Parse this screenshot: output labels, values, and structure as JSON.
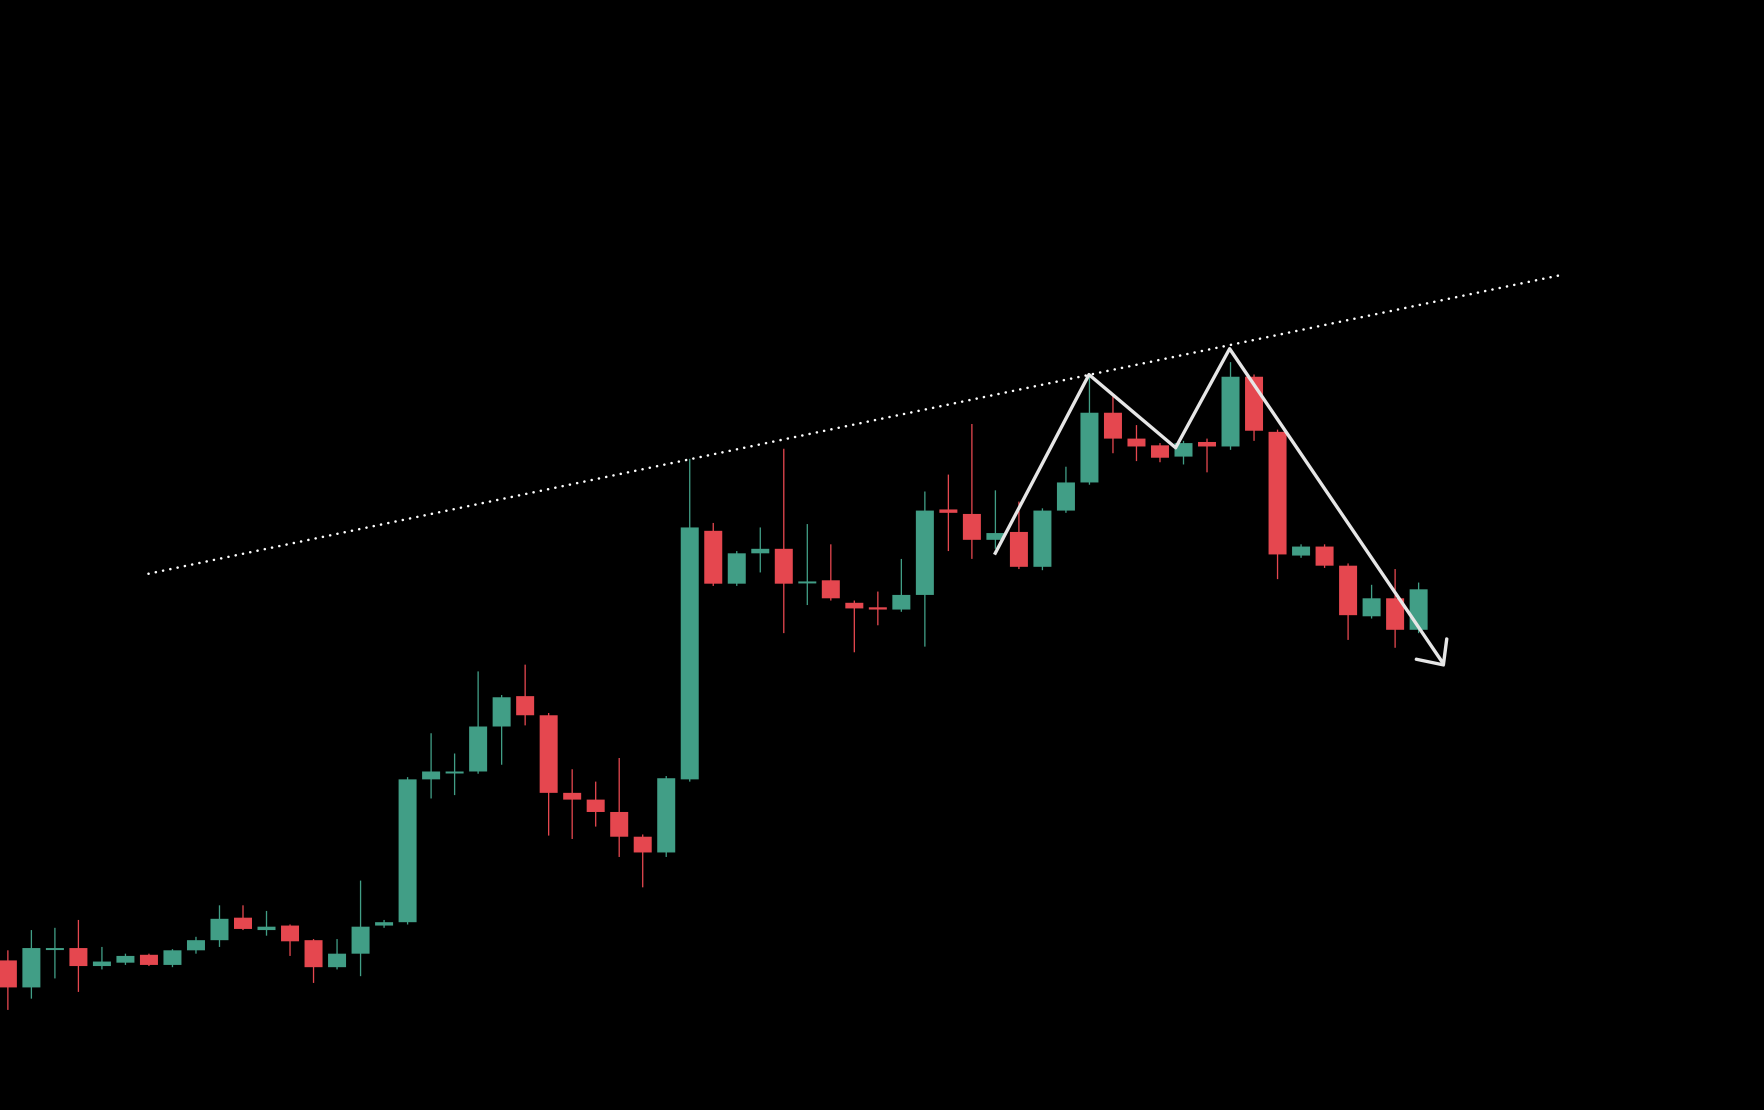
{
  "chart_data": {
    "type": "candlestick",
    "categories": [
      null,
      null,
      null,
      null,
      null,
      null,
      null,
      null,
      null,
      null,
      null,
      null,
      null,
      null,
      null,
      null,
      null,
      null,
      null,
      null,
      null,
      null,
      null,
      null,
      null,
      null,
      null,
      null,
      null,
      null,
      null,
      null,
      null,
      null,
      null,
      null,
      null,
      null,
      null,
      null,
      null,
      null,
      null,
      null,
      null,
      null,
      null,
      null,
      null,
      null,
      null,
      null,
      null,
      null,
      null,
      null,
      null,
      null,
      null,
      null,
      null
    ],
    "open": [
      133,
      109,
      143,
      144,
      128,
      131,
      138,
      129,
      142,
      151,
      171,
      160,
      164,
      151,
      127,
      139,
      164,
      167,
      294,
      300,
      301,
      341,
      368,
      351,
      282,
      276,
      265,
      243,
      229,
      294,
      515,
      468,
      495,
      499,
      469,
      471,
      451,
      447,
      445,
      458,
      534,
      530,
      507,
      514,
      483,
      533,
      558,
      620,
      597,
      591,
      581,
      594,
      590,
      652,
      603,
      493,
      501,
      484,
      439,
      455,
      427
    ],
    "high": [
      142,
      160,
      162,
      169,
      145,
      139,
      139,
      143,
      154,
      182,
      182,
      177,
      165,
      152,
      152,
      204,
      169,
      296,
      335,
      317,
      390,
      369,
      396,
      353,
      303,
      292,
      313,
      245,
      297,
      579,
      522,
      497,
      518,
      588,
      521,
      503,
      453,
      461,
      490,
      550,
      565,
      610,
      551,
      541,
      535,
      572,
      652,
      635,
      609,
      593,
      595,
      597,
      665,
      654,
      605,
      503,
      503,
      486,
      467,
      481,
      469
    ],
    "low": [
      89,
      99,
      117,
      105,
      125,
      129,
      128,
      127,
      139,
      145,
      160,
      155,
      137,
      113,
      125,
      119,
      162,
      165,
      277,
      280,
      299,
      307,
      342,
      244,
      241,
      252,
      225,
      198,
      225,
      292,
      466,
      466,
      478,
      424,
      449,
      453,
      407,
      431,
      443,
      412,
      497,
      490,
      499,
      481,
      480,
      531,
      556,
      584,
      577,
      576,
      574,
      567,
      587,
      595,
      472,
      491,
      482,
      418,
      437,
      411,
      424
    ],
    "close": [
      109,
      144,
      144,
      128,
      132,
      137,
      129,
      142,
      151,
      170,
      161,
      163,
      150,
      127,
      139,
      163,
      167,
      294,
      301,
      301,
      341,
      367,
      351,
      282,
      276,
      265,
      243,
      229,
      295,
      518,
      468,
      495,
      499,
      468,
      470,
      455,
      446,
      445,
      458,
      533,
      531,
      507,
      513,
      483,
      533,
      558,
      620,
      597,
      590,
      580,
      593,
      590,
      652,
      604,
      494,
      501,
      484,
      440,
      455,
      427,
      463
    ],
    "ylim": [
      0,
      987
    ],
    "up_color": "#419e86",
    "down_color": "#e5474f",
    "background": "#000000"
  }
}
